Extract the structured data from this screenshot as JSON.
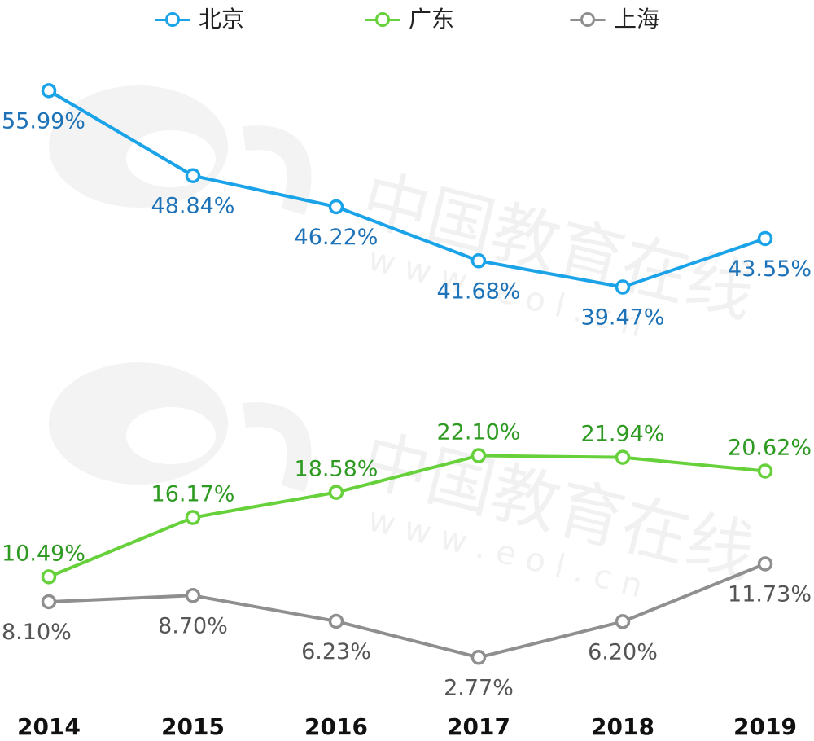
{
  "chart_data": {
    "type": "line",
    "categories": [
      "2014",
      "2015",
      "2016",
      "2017",
      "2018",
      "2019"
    ],
    "series": [
      {
        "name": "北京",
        "color": "#1aa3e8",
        "label_color": "#1d72b8",
        "values": [
          55.99,
          48.84,
          46.22,
          41.68,
          39.47,
          43.55
        ],
        "labels": [
          "55.99%",
          "48.84%",
          "46.22%",
          "41.68%",
          "39.47%",
          "43.55%"
        ]
      },
      {
        "name": "广东",
        "color": "#66d13a",
        "label_color": "#2e9a22",
        "values": [
          10.49,
          16.17,
          18.58,
          22.1,
          21.94,
          20.62
        ],
        "labels": [
          "10.49%",
          "16.17%",
          "18.58%",
          "22.10%",
          "21.94%",
          "20.62%"
        ]
      },
      {
        "name": "上海",
        "color": "#8f8f8f",
        "label_color": "#555555",
        "values": [
          8.1,
          8.7,
          6.23,
          2.77,
          6.2,
          11.73
        ],
        "labels": [
          "8.10%",
          "8.70%",
          "6.23%",
          "2.77%",
          "6.20%",
          "11.73%"
        ]
      }
    ],
    "axis": "broken",
    "ylim_upper": [
      38,
      58
    ],
    "ylim_lower": [
      1,
      23
    ],
    "grid": false,
    "legend_position": "top-center"
  },
  "watermark": {
    "text_cn": "中国教育在线",
    "text_url": "w w w . e o l . c n"
  }
}
